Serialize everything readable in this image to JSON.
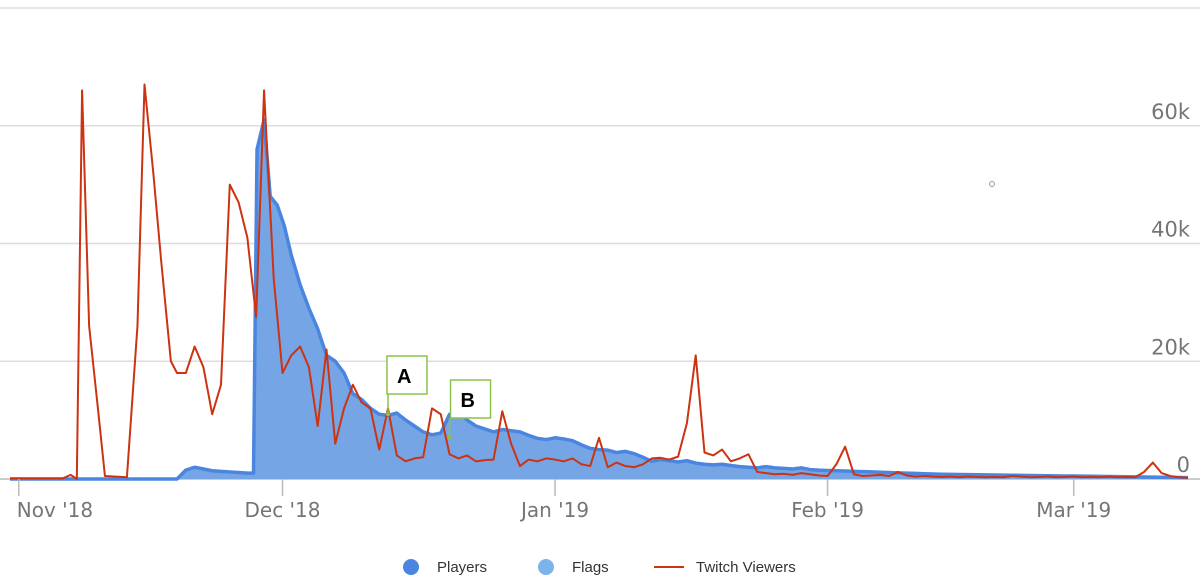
{
  "chart_data": {
    "type": "area",
    "title": "",
    "xlabel": "",
    "ylabel": "",
    "x_start": "2018-10-31",
    "x_end": "2019-03-14",
    "x_ticks": [
      {
        "label": "Nov '18",
        "date": "2018-11-01"
      },
      {
        "label": "Dec '18",
        "date": "2018-12-01"
      },
      {
        "label": "Jan '19",
        "date": "2019-01-01"
      },
      {
        "label": "Feb '19",
        "date": "2019-02-01"
      },
      {
        "label": "Mar '19",
        "date": "2019-03-01"
      }
    ],
    "y_ticks": [
      {
        "label": "0",
        "value": 0
      },
      {
        "label": "20k",
        "value": 20000
      },
      {
        "label": "40k",
        "value": 40000
      },
      {
        "label": "60k",
        "value": 60000
      }
    ],
    "ylim": [
      0,
      80000
    ],
    "series": [
      {
        "name": "Players",
        "kind": "area",
        "color": "#4a86e0",
        "fill": "#76a5e6",
        "points": [
          [
            0,
            0
          ],
          [
            19,
            0
          ],
          [
            20,
            1500
          ],
          [
            21,
            2000
          ],
          [
            22,
            1700
          ],
          [
            23,
            1400
          ],
          [
            24,
            1300
          ],
          [
            25,
            1200
          ],
          [
            26,
            1100
          ],
          [
            27,
            1000
          ],
          [
            27.7,
            1000
          ],
          [
            28.1,
            56000
          ],
          [
            28.9,
            61000
          ],
          [
            29.6,
            48000
          ],
          [
            30.4,
            46500
          ],
          [
            31.2,
            43000
          ],
          [
            32,
            38000
          ],
          [
            33,
            33000
          ],
          [
            34,
            29000
          ],
          [
            35,
            25500
          ],
          [
            36,
            21000
          ],
          [
            37,
            20000
          ],
          [
            38,
            18000
          ],
          [
            39,
            14500
          ],
          [
            40,
            13500
          ],
          [
            41,
            12000
          ],
          [
            42,
            11000
          ],
          [
            43,
            10800
          ],
          [
            44,
            11200
          ],
          [
            45,
            10000
          ],
          [
            46,
            9000
          ],
          [
            47,
            8000
          ],
          [
            48,
            7500
          ],
          [
            49,
            7800
          ],
          [
            50,
            11000
          ],
          [
            51,
            11500
          ],
          [
            52,
            10000
          ],
          [
            53,
            9000
          ],
          [
            54,
            8500
          ],
          [
            55,
            8000
          ],
          [
            56,
            8400
          ],
          [
            57,
            8200
          ],
          [
            58,
            8000
          ],
          [
            59,
            7400
          ],
          [
            60,
            6900
          ],
          [
            61,
            6700
          ],
          [
            62,
            7000
          ],
          [
            63,
            6800
          ],
          [
            64,
            6500
          ],
          [
            65,
            5800
          ],
          [
            66,
            5200
          ],
          [
            67,
            5000
          ],
          [
            68,
            4900
          ],
          [
            69,
            4500
          ],
          [
            70,
            4700
          ],
          [
            71,
            4300
          ],
          [
            72,
            3700
          ],
          [
            73,
            3000
          ],
          [
            74,
            3300
          ],
          [
            75,
            3100
          ],
          [
            76,
            2900
          ],
          [
            77,
            3100
          ],
          [
            78,
            2700
          ],
          [
            79,
            2500
          ],
          [
            80,
            2400
          ],
          [
            81,
            2500
          ],
          [
            82,
            2300
          ],
          [
            83,
            2100
          ],
          [
            84,
            2000
          ],
          [
            85,
            1900
          ],
          [
            86,
            2100
          ],
          [
            87,
            1900
          ],
          [
            88,
            1800
          ],
          [
            89,
            1700
          ],
          [
            90,
            1900
          ],
          [
            91,
            1600
          ],
          [
            92,
            1500
          ],
          [
            93,
            1450
          ],
          [
            94,
            1400
          ],
          [
            95,
            1350
          ],
          [
            96,
            1300
          ],
          [
            97,
            1250
          ],
          [
            98,
            1200
          ],
          [
            99,
            1150
          ],
          [
            100,
            1100
          ],
          [
            101,
            1050
          ],
          [
            102,
            1000
          ],
          [
            103,
            950
          ],
          [
            104,
            900
          ],
          [
            105,
            850
          ],
          [
            106,
            800
          ],
          [
            107,
            780
          ],
          [
            108,
            760
          ],
          [
            109,
            740
          ],
          [
            110,
            720
          ],
          [
            111,
            700
          ],
          [
            112,
            680
          ],
          [
            113,
            660
          ],
          [
            114,
            640
          ],
          [
            115,
            620
          ],
          [
            116,
            600
          ],
          [
            117,
            580
          ],
          [
            118,
            560
          ],
          [
            119,
            540
          ],
          [
            120,
            520
          ],
          [
            121,
            500
          ],
          [
            122,
            480
          ],
          [
            123,
            460
          ],
          [
            124,
            440
          ],
          [
            125,
            420
          ],
          [
            126,
            400
          ],
          [
            127,
            380
          ],
          [
            128,
            360
          ],
          [
            129,
            340
          ],
          [
            130,
            320
          ],
          [
            131,
            300
          ],
          [
            132,
            280
          ],
          [
            133,
            260
          ],
          [
            134,
            240
          ]
        ]
      },
      {
        "name": "Twitch Viewers",
        "kind": "line",
        "color": "#cc3311",
        "points": [
          [
            0,
            100
          ],
          [
            6,
            100
          ],
          [
            6.9,
            700
          ],
          [
            7.6,
            0
          ],
          [
            8.2,
            66000
          ],
          [
            9,
            26000
          ],
          [
            10,
            12000
          ],
          [
            10.8,
            500
          ],
          [
            13.3,
            300
          ],
          [
            14.5,
            26000
          ],
          [
            15.3,
            67000
          ],
          [
            16.3,
            52000
          ],
          [
            17.2,
            37000
          ],
          [
            18.3,
            20000
          ],
          [
            19,
            18000
          ],
          [
            20,
            18000
          ],
          [
            21,
            22500
          ],
          [
            22,
            19000
          ],
          [
            23,
            11000
          ],
          [
            24,
            16000
          ],
          [
            25,
            50000
          ],
          [
            26,
            47000
          ],
          [
            27,
            41000
          ],
          [
            28,
            27500
          ],
          [
            28.9,
            66000
          ],
          [
            30,
            34000
          ],
          [
            31,
            18000
          ],
          [
            32,
            21000
          ],
          [
            33,
            22500
          ],
          [
            34,
            19000
          ],
          [
            35,
            9000
          ],
          [
            36,
            22000
          ],
          [
            37,
            6000
          ],
          [
            38,
            12000
          ],
          [
            39,
            16000
          ],
          [
            40,
            13000
          ],
          [
            41,
            12000
          ],
          [
            42,
            5000
          ],
          [
            43,
            12000
          ],
          [
            44,
            4000
          ],
          [
            45,
            3000
          ],
          [
            46,
            3500
          ],
          [
            47,
            3700
          ],
          [
            48,
            12000
          ],
          [
            49,
            11000
          ],
          [
            50,
            4200
          ],
          [
            51,
            3500
          ],
          [
            52,
            4000
          ],
          [
            53,
            3000
          ],
          [
            54,
            3200
          ],
          [
            55,
            3300
          ],
          [
            56,
            11500
          ],
          [
            57,
            6000
          ],
          [
            58,
            2200
          ],
          [
            59,
            3300
          ],
          [
            60,
            3000
          ],
          [
            61,
            3500
          ],
          [
            62,
            3300
          ],
          [
            63,
            3000
          ],
          [
            64,
            3500
          ],
          [
            65,
            2500
          ],
          [
            66,
            2200
          ],
          [
            67,
            7000
          ],
          [
            68,
            2000
          ],
          [
            69,
            2800
          ],
          [
            70,
            2200
          ],
          [
            71,
            2000
          ],
          [
            72,
            2500
          ],
          [
            73,
            3500
          ],
          [
            74,
            3600
          ],
          [
            75,
            3300
          ],
          [
            76,
            3800
          ],
          [
            77,
            9500
          ],
          [
            78,
            21000
          ],
          [
            79,
            4500
          ],
          [
            80,
            4000
          ],
          [
            81,
            5000
          ],
          [
            82,
            3000
          ],
          [
            83,
            3500
          ],
          [
            84,
            4200
          ],
          [
            85,
            1200
          ],
          [
            86,
            1000
          ],
          [
            87,
            800
          ],
          [
            88,
            900
          ],
          [
            89,
            700
          ],
          [
            90,
            1000
          ],
          [
            91,
            800
          ],
          [
            92,
            600
          ],
          [
            93,
            500
          ],
          [
            94,
            2500
          ],
          [
            95,
            5500
          ],
          [
            96,
            800
          ],
          [
            97,
            500
          ],
          [
            98,
            600
          ],
          [
            99,
            700
          ],
          [
            100,
            500
          ],
          [
            101,
            1200
          ],
          [
            102,
            600
          ],
          [
            103,
            400
          ],
          [
            104,
            500
          ],
          [
            105,
            400
          ],
          [
            106,
            350
          ],
          [
            107,
            400
          ],
          [
            108,
            300
          ],
          [
            109,
            400
          ],
          [
            110,
            350
          ],
          [
            111,
            300
          ],
          [
            112,
            350
          ],
          [
            113,
            300
          ],
          [
            114,
            500
          ],
          [
            115,
            400
          ],
          [
            116,
            300
          ],
          [
            117,
            350
          ],
          [
            118,
            400
          ],
          [
            119,
            300
          ],
          [
            120,
            350
          ],
          [
            121,
            400
          ],
          [
            122,
            300
          ],
          [
            123,
            350
          ],
          [
            124,
            300
          ],
          [
            125,
            400
          ],
          [
            126,
            300
          ],
          [
            127,
            350
          ],
          [
            128,
            300
          ],
          [
            129,
            1200
          ],
          [
            130,
            2800
          ],
          [
            131,
            1000
          ],
          [
            132,
            500
          ],
          [
            133,
            300
          ],
          [
            134,
            200
          ]
        ]
      }
    ],
    "flags": [
      {
        "label": "A",
        "day": 43,
        "value": 11000
      },
      {
        "label": "B",
        "day": 50,
        "value": 7000
      }
    ],
    "legend_position": "bottom-center",
    "grid": true
  },
  "legend": {
    "players": {
      "label": "Players",
      "color": "#4a86e0"
    },
    "flags": {
      "label": "Flags",
      "color": "#7cb3ea"
    },
    "twitch": {
      "label": "Twitch Viewers",
      "color": "#cc3311"
    }
  }
}
